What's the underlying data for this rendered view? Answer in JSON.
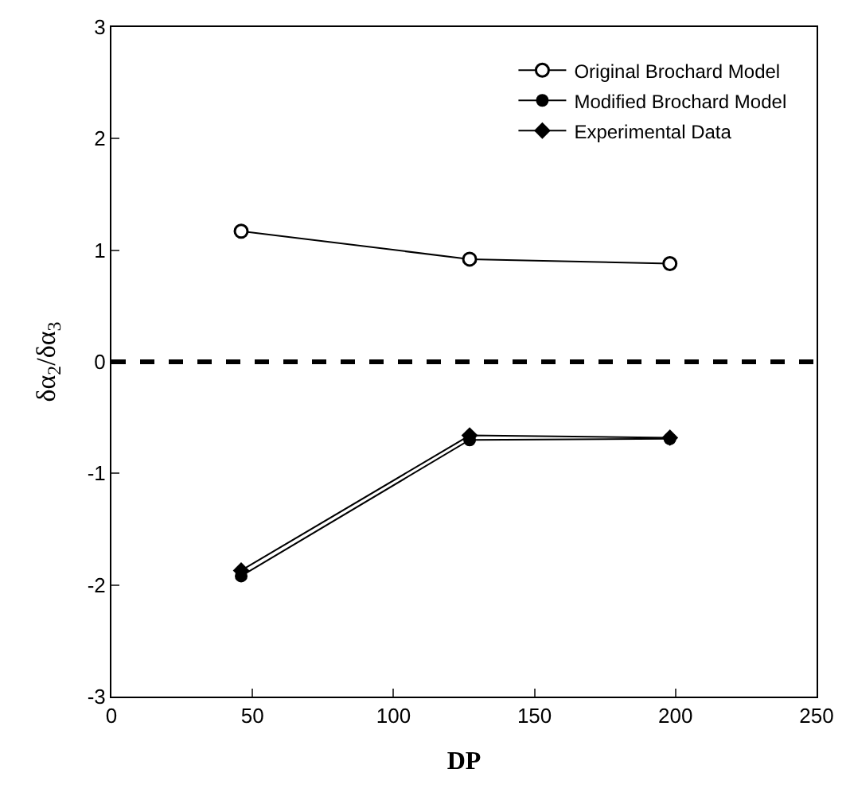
{
  "chart_data": {
    "type": "line",
    "xlabel": "DP",
    "ylabel": "δα$_{2}$/δα$_{3}$",
    "x": [
      46,
      127,
      198
    ],
    "series": [
      {
        "name": "Original Brochard Model",
        "color": "#000000",
        "marker": "open circle",
        "values": [
          1.17,
          0.92,
          0.88
        ]
      },
      {
        "name": "Modified Brochard Model",
        "color": "#000000",
        "marker": "circle",
        "values": [
          -1.92,
          -0.7,
          -0.69
        ]
      },
      {
        "name": "Experimental Data",
        "color": "#000000",
        "marker": "diamond",
        "values": [
          -1.87,
          -0.66,
          -0.68
        ]
      }
    ],
    "xlim": [
      0,
      250
    ],
    "xticks": [
      0,
      50,
      100,
      150,
      200,
      250
    ],
    "ylim": [
      -3,
      3
    ],
    "yticks": [
      -3,
      -2,
      -1,
      0,
      1,
      2,
      3
    ],
    "ref_lines": [
      {
        "axis": "y",
        "value": 0,
        "color": "#000000",
        "line_style": "dashed"
      }
    ],
    "legend": "top right",
    "line_style": "solid"
  }
}
